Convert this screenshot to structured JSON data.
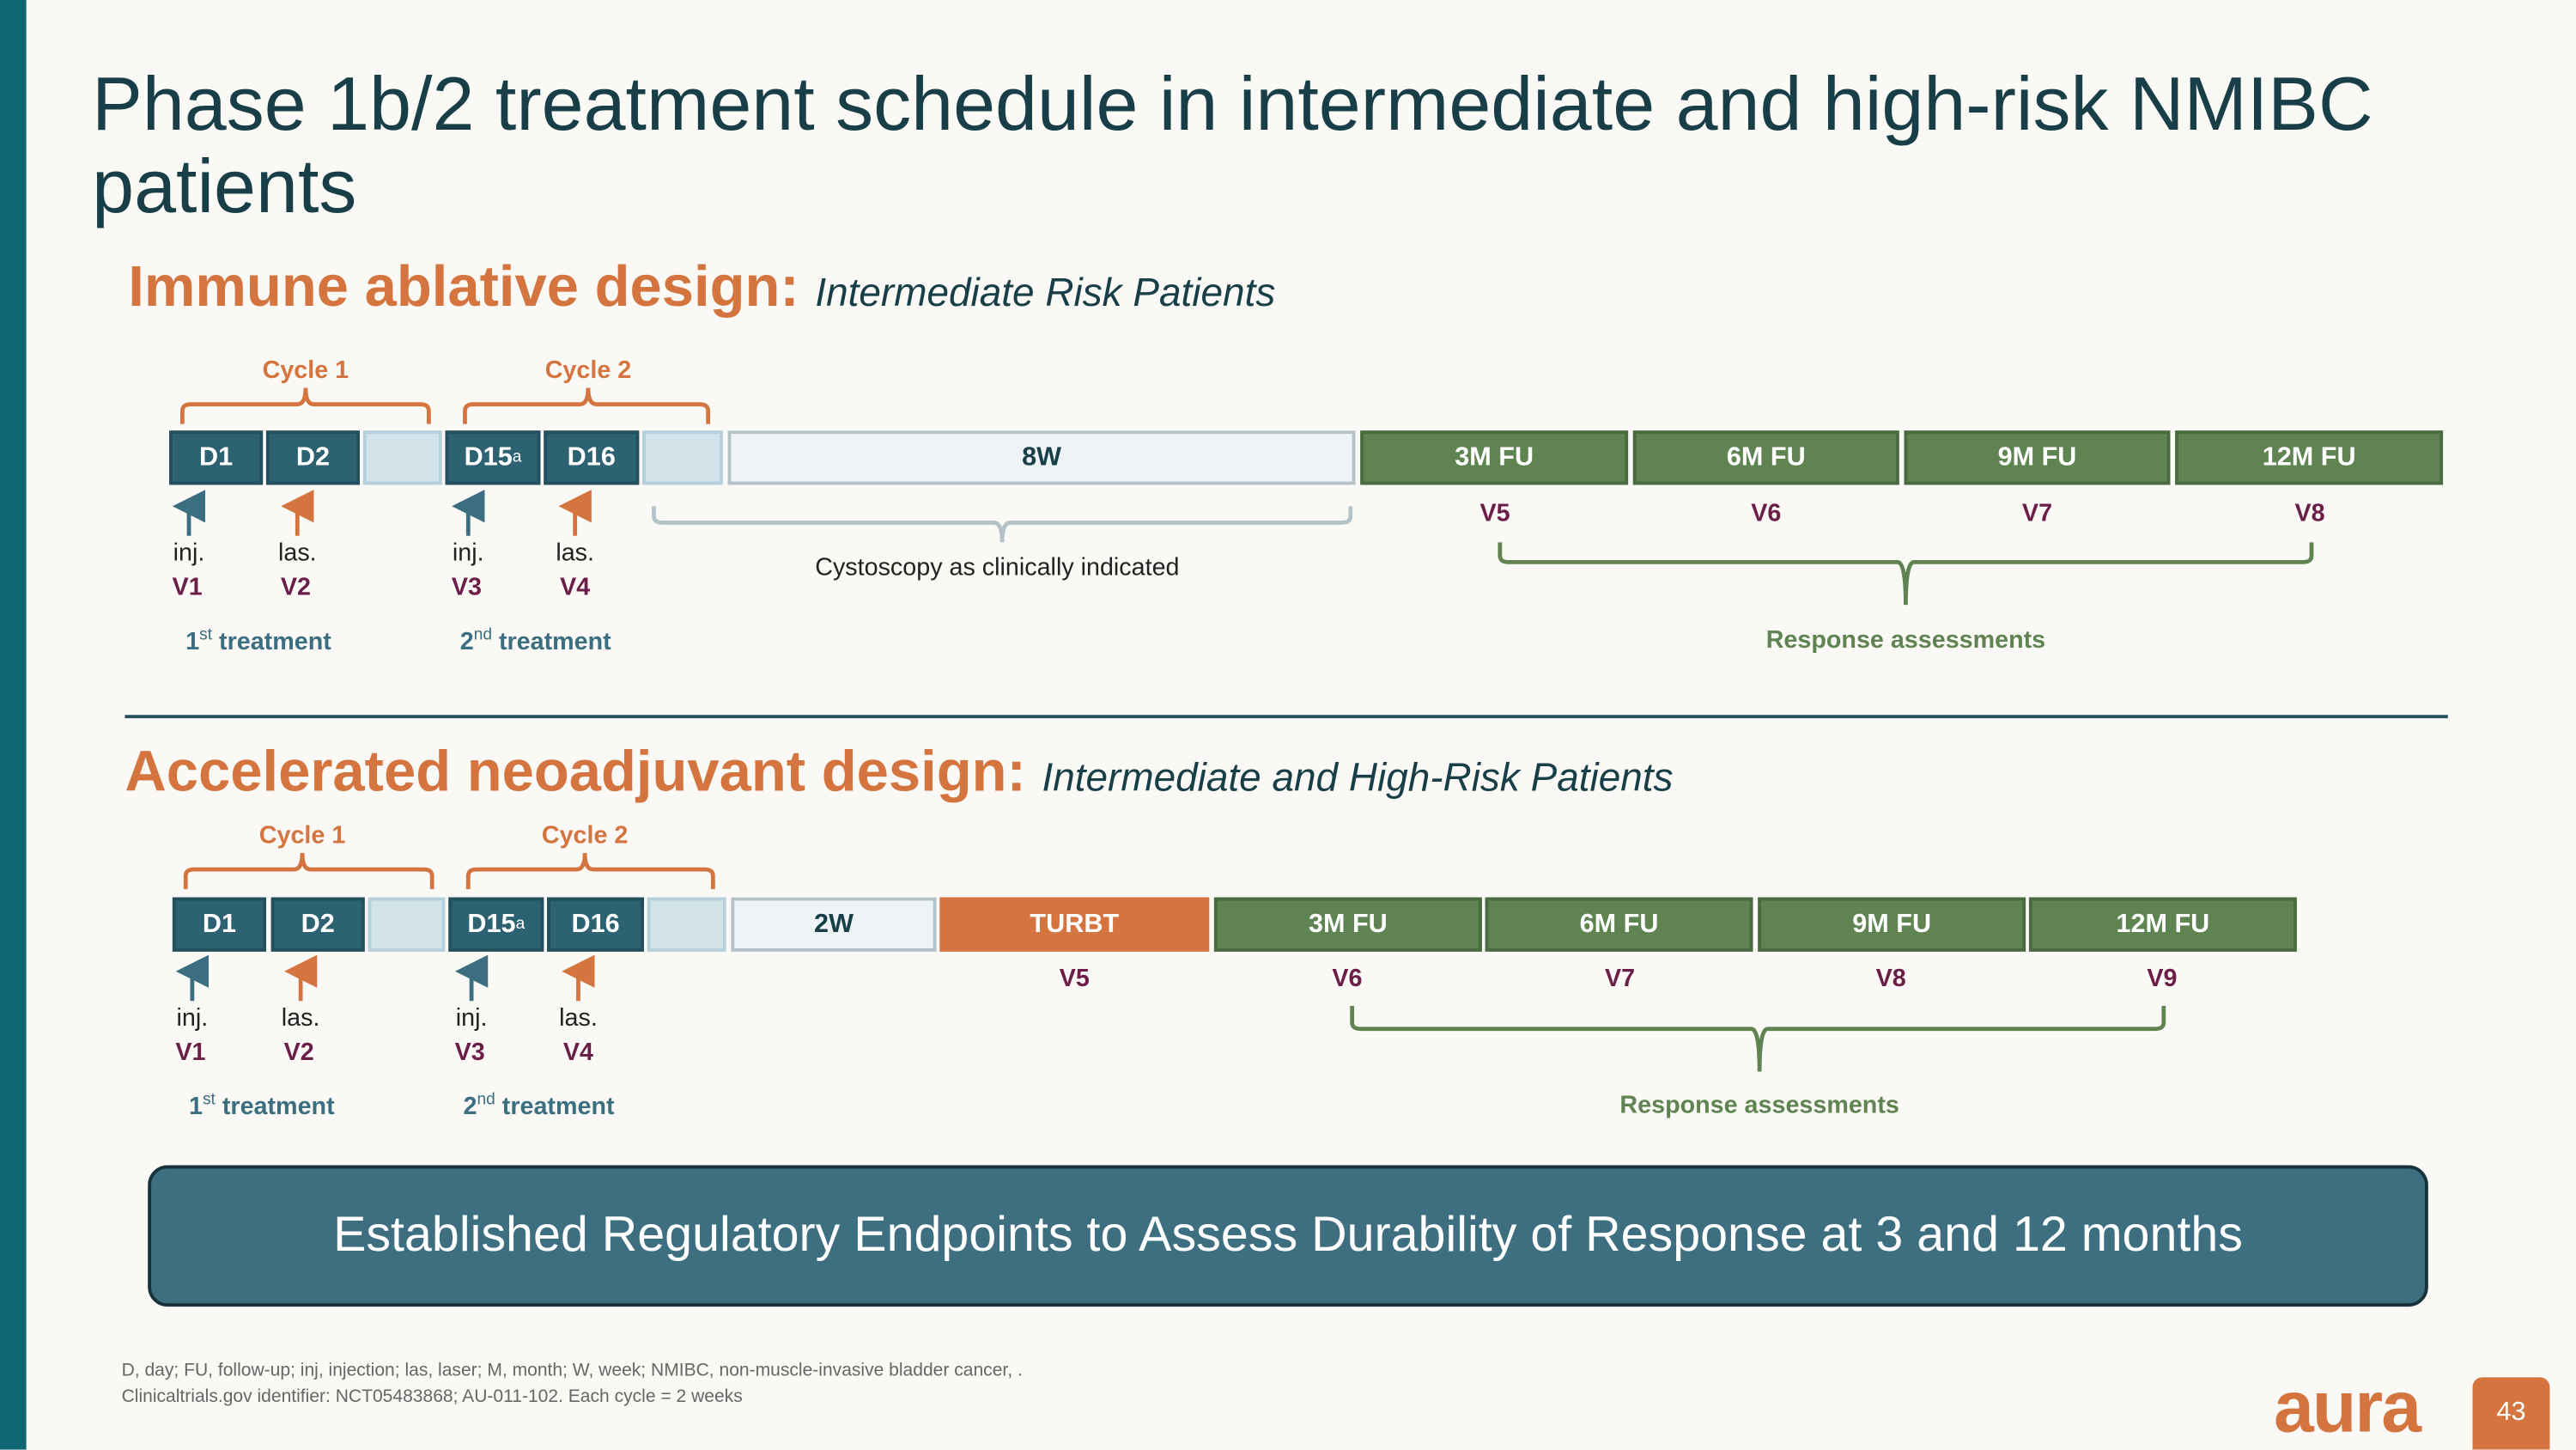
{
  "title": "Phase 1b/2 treatment schedule in intermediate and high-risk NMIBC patients",
  "section1": {
    "heading": "Immune ablative design:",
    "subheading": "Intermediate Risk Patients",
    "cycles": [
      "Cycle 1",
      "Cycle 2"
    ],
    "boxes": [
      "D1",
      "D2",
      "",
      "D15",
      "D16",
      "",
      "8W",
      "3M FU",
      "6M FU",
      "9M FU",
      "12M FU"
    ],
    "d15_sup": "a",
    "actions": [
      "inj.",
      "las.",
      "inj.",
      "las."
    ],
    "visits_early": [
      "V1",
      "V2",
      "V3",
      "V4"
    ],
    "treatments": [
      {
        "num": "1",
        "sup": "st",
        "label": " treatment"
      },
      {
        "num": "2",
        "sup": "nd",
        "label": " treatment"
      }
    ],
    "cystoscopy": "Cystoscopy as clinically indicated",
    "visits_fu": [
      "V5",
      "V6",
      "V7",
      "V8"
    ],
    "response": "Response assessments"
  },
  "section2": {
    "heading": "Accelerated neoadjuvant design:",
    "subheading": "Intermediate and High-Risk Patients",
    "cycles": [
      "Cycle 1",
      "Cycle 2"
    ],
    "boxes": [
      "D1",
      "D2",
      "",
      "D15",
      "D16",
      "",
      "2W",
      "TURBT",
      "3M FU",
      "6M FU",
      "9M FU",
      "12M FU"
    ],
    "d15_sup": "a",
    "actions": [
      "inj.",
      "las.",
      "inj.",
      "las."
    ],
    "visits_early": [
      "V1",
      "V2",
      "V3",
      "V4"
    ],
    "treatments": [
      {
        "num": "1",
        "sup": "st",
        "label": " treatment"
      },
      {
        "num": "2",
        "sup": "nd",
        "label": " treatment"
      }
    ],
    "visits_fu": [
      "V5",
      "V6",
      "V7",
      "V8",
      "V9"
    ],
    "response": "Response assessments"
  },
  "banner": "Established Regulatory Endpoints to Assess Durability of Response at 3 and 12 months",
  "footnotes": {
    "line1": "D, day; FU, follow-up; inj, injection; las, laser; M, month; W, week; NMIBC, non-muscle-invasive bladder cancer, .",
    "line2": "Clinicaltrials.gov identifier: NCT05483868; AU-011-102. Each cycle = 2 weeks"
  },
  "logo": "aura",
  "page_number": "43",
  "colors": {
    "teal": "#2d6273",
    "orange": "#d4743f",
    "green": "#5f8452",
    "visit": "#6b1e48"
  }
}
